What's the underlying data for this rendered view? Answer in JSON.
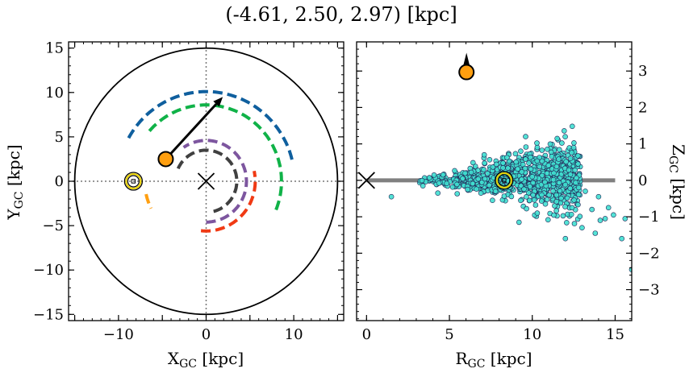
{
  "suptitle": "(-4.61, 2.50, 2.97) [kpc]",
  "chart_data": [
    {
      "type": "scatter",
      "panel": "left",
      "xlabel": "X",
      "xlabel_sub": "GC",
      "xlabel_unit": " [kpc]",
      "ylabel": "Y",
      "ylabel_sub": "GC",
      "ylabel_unit": " [kpc]",
      "xlim": [
        -15.7,
        15.7
      ],
      "ylim": [
        -15.7,
        15.7
      ],
      "xticks": [
        -10,
        0,
        10
      ],
      "xtick_labels": [
        "−10",
        "0",
        "10"
      ],
      "yticks": [
        -15,
        -10,
        -5,
        0,
        5,
        10,
        15
      ],
      "ytick_labels": [
        "−15",
        "−10",
        "−5",
        "0",
        "5",
        "10",
        "15"
      ],
      "boundary_radius_kpc": 15,
      "galactic_center": [
        0,
        0
      ],
      "sun": [
        -8.3,
        0
      ],
      "target": [
        -4.61,
        2.5
      ],
      "proper_motion_arrow_end": [
        1.9,
        9.5
      ],
      "spiral_arms": [
        {
          "color": "#0f5f9e",
          "radius": 10.1,
          "start_deg": 14,
          "end_deg": 154
        },
        {
          "color": "#10b248",
          "radius": 8.6,
          "start_deg": 338,
          "end_deg": 141
        },
        {
          "color": "#ff9f10",
          "radius": 7.0,
          "start_deg": 192,
          "end_deg": 207
        },
        {
          "color": "#f03a14",
          "radius": 5.6,
          "start_deg": 264,
          "end_deg": 12
        },
        {
          "color": "#7d569f",
          "radius": 4.6,
          "start_deg": 270,
          "end_deg": 125
        },
        {
          "color": "#404040",
          "radius": 3.5,
          "start_deg": 284,
          "end_deg": 156
        }
      ]
    },
    {
      "type": "scatter",
      "panel": "right",
      "xlabel": "R",
      "xlabel_sub": "GC",
      "xlabel_unit": " [kpc]",
      "ylabel": "Z",
      "ylabel_sub": "GC",
      "ylabel_unit": " [kpc]",
      "xlim": [
        -0.6,
        16
      ],
      "ylim": [
        -3.85,
        3.8
      ],
      "xticks": [
        0,
        5,
        10,
        15
      ],
      "xtick_labels": [
        "0",
        "5",
        "10",
        "15"
      ],
      "yticks": [
        -3,
        -2,
        -1,
        0,
        1,
        2,
        3
      ],
      "ytick_labels": [
        "−3",
        "−2",
        "−1",
        "0",
        "1",
        "2",
        "3"
      ],
      "disk_line": {
        "x": [
          0,
          15
        ],
        "y": 0,
        "color": "#808080"
      },
      "galactic_center": [
        0,
        0
      ],
      "sun": [
        8.3,
        0
      ],
      "target": [
        6.03,
        2.97
      ],
      "stars_color": "#40e0d0",
      "stars": [
        [
          1.5,
          -0.45
        ],
        [
          3.4,
          -0.15
        ],
        [
          4.3,
          -0.35
        ],
        [
          5.8,
          0.05
        ],
        [
          6.1,
          -0.25
        ],
        [
          7.1,
          0.7
        ],
        [
          9.3,
          0.8
        ],
        [
          9.6,
          1.2
        ],
        [
          10.0,
          0.1
        ],
        [
          11.3,
          0.2
        ],
        [
          11.5,
          1.15
        ],
        [
          12.3,
          0.6
        ],
        [
          12.4,
          -0.75
        ],
        [
          13.2,
          -0.3
        ],
        [
          13.6,
          -0.8
        ],
        [
          14.0,
          -0.45
        ],
        [
          14.4,
          -1.05
        ],
        [
          14.6,
          -0.75
        ],
        [
          14.9,
          -0.95
        ],
        [
          15.4,
          -1.6
        ],
        [
          15.6,
          -1.05
        ],
        [
          16.0,
          -2.45
        ],
        [
          13.0,
          -1.3
        ],
        [
          12.5,
          0.9
        ],
        [
          12.8,
          -0.2
        ],
        [
          10.3,
          -0.9
        ],
        [
          9.2,
          -1.15
        ],
        [
          7.6,
          -0.55
        ],
        [
          6.9,
          -0.35
        ],
        [
          13.8,
          -1.45
        ],
        [
          14.1,
          -1.1
        ],
        [
          12.0,
          -1.6
        ]
      ]
    }
  ]
}
